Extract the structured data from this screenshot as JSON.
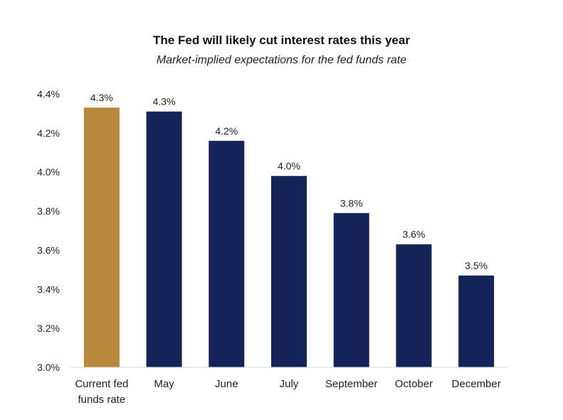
{
  "chart_data": {
    "type": "bar",
    "title": "The Fed will likely cut interest rates this year",
    "subtitle": "Market-implied expectations for the fed funds rate",
    "categories": [
      [
        "Current fed",
        "funds rate"
      ],
      [
        "May"
      ],
      [
        "June"
      ],
      [
        "July"
      ],
      [
        "September"
      ],
      [
        "October"
      ],
      [
        "December"
      ]
    ],
    "values": [
      4.33,
      4.31,
      4.16,
      3.98,
      3.79,
      3.63,
      3.47
    ],
    "data_labels": [
      "4.3%",
      "4.3%",
      "4.2%",
      "4.0%",
      "3.8%",
      "3.6%",
      "3.5%"
    ],
    "bar_colors": [
      "#b8893a",
      "#142459",
      "#142459",
      "#142459",
      "#142459",
      "#142459",
      "#142459"
    ],
    "ylim": [
      3.0,
      4.4
    ],
    "yticks": [
      3.0,
      3.2,
      3.4,
      3.6,
      3.8,
      4.0,
      4.2,
      4.4
    ],
    "ytick_labels": [
      "3.0%",
      "3.2%",
      "3.4%",
      "3.6%",
      "3.8%",
      "4.0%",
      "4.2%",
      "4.4%"
    ],
    "grid": false,
    "axis_color": "#d9d9d9"
  }
}
